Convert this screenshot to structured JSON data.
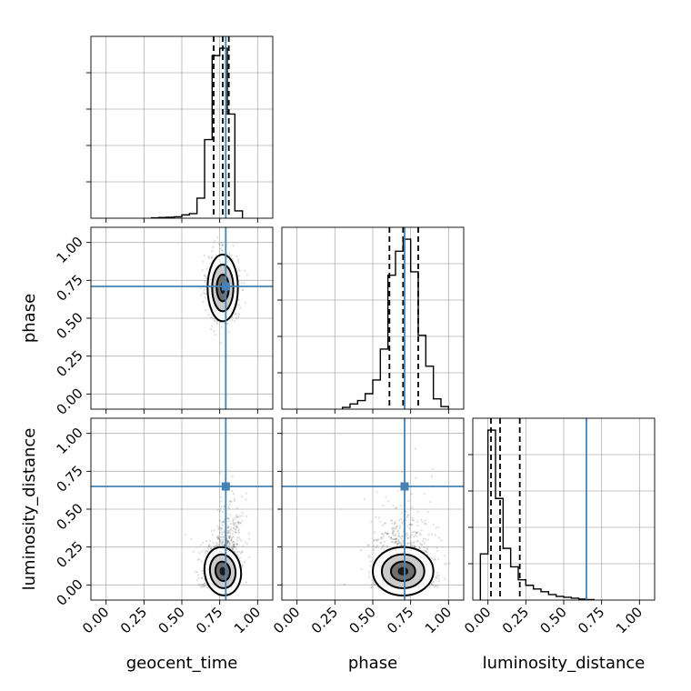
{
  "chart_data": {
    "type": "corner",
    "parameters": [
      "geocent_time",
      "phase",
      "luminosity_distance"
    ],
    "axis_labels": [
      "geocent_time",
      "phase",
      "luminosity_distance"
    ],
    "axis_range": [
      -0.1,
      1.1
    ],
    "tick_values": [
      0.0,
      0.25,
      0.5,
      0.75,
      1.0
    ],
    "tick_labels": [
      "0.00",
      "0.25",
      "0.50",
      "0.75",
      "1.00"
    ],
    "grid": true,
    "truths": [
      0.79,
      0.71,
      0.65
    ],
    "colors": {
      "truth": "#4682b4",
      "hist": "#000000",
      "points": "#000000"
    },
    "quantiles": {
      "geocent_time": [
        0.71,
        0.77,
        0.81
      ],
      "phase": [
        0.61,
        0.7,
        0.8
      ],
      "luminosity_distance": [
        0.02,
        0.08,
        0.21
      ]
    },
    "marginals": [
      {
        "param": "geocent_time",
        "bin_edges": [
          0.3,
          0.35,
          0.4,
          0.45,
          0.5,
          0.55,
          0.6,
          0.65,
          0.7,
          0.75,
          0.8,
          0.85,
          0.9
        ],
        "counts": [
          0.002,
          0.004,
          0.005,
          0.008,
          0.018,
          0.025,
          0.11,
          0.43,
          0.89,
          0.93,
          0.57,
          0.04
        ]
      },
      {
        "param": "phase",
        "bin_edges": [
          0.3,
          0.35,
          0.4,
          0.45,
          0.5,
          0.55,
          0.6,
          0.65,
          0.7,
          0.75,
          0.8,
          0.85,
          0.9,
          0.95,
          1.0
        ],
        "counts": [
          0.01,
          0.03,
          0.05,
          0.09,
          0.17,
          0.35,
          0.78,
          0.92,
          0.99,
          0.8,
          0.43,
          0.25,
          0.06,
          0.015
        ]
      },
      {
        "param": "luminosity_distance",
        "bin_edges": [
          -0.05,
          0.0,
          0.05,
          0.1,
          0.15,
          0.2,
          0.25,
          0.3,
          0.35,
          0.4,
          0.45,
          0.5,
          0.55,
          0.6,
          0.65,
          0.7
        ],
        "counts": [
          0.25,
          0.92,
          0.55,
          0.28,
          0.18,
          0.11,
          0.08,
          0.06,
          0.045,
          0.03,
          0.02,
          0.015,
          0.01,
          0.005,
          0.003
        ]
      }
    ],
    "joint": [
      {
        "x": "geocent_time",
        "y": "phase",
        "x_mean": 0.77,
        "y_mean": 0.7,
        "x_sd": 0.05,
        "y_sd": 0.11,
        "corr": 0.0
      },
      {
        "x": "geocent_time",
        "y": "luminosity_distance",
        "x_mean": 0.77,
        "y_mean": 0.09,
        "x_sd": 0.06,
        "y_sd": 0.08,
        "corr": 0.5
      },
      {
        "x": "phase",
        "y": "luminosity_distance",
        "x_mean": 0.7,
        "y_mean": 0.09,
        "x_sd": 0.1,
        "y_sd": 0.08,
        "corr": 0.0
      }
    ]
  }
}
